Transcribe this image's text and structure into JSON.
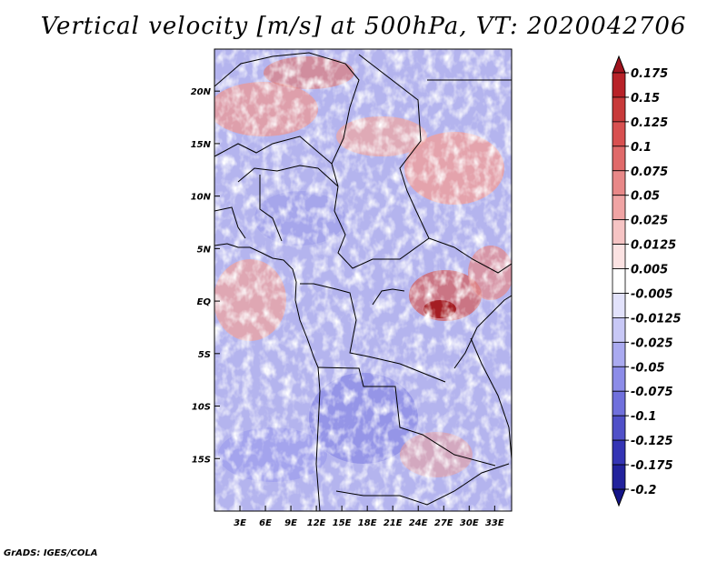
{
  "chart_data": {
    "type": "heatmap",
    "title": "Vertical velocity [m/s] at 500hPa, VT: 2020042706",
    "variable": "Vertical velocity",
    "units": "m/s",
    "level": "500hPa",
    "valid_time": "2020042706",
    "x_axis": {
      "ticks": [
        3,
        6,
        9,
        12,
        15,
        18,
        21,
        24,
        27,
        30,
        33
      ],
      "tick_labels": [
        "3E",
        "6E",
        "9E",
        "12E",
        "15E",
        "18E",
        "21E",
        "24E",
        "27E",
        "30E",
        "33E"
      ],
      "range": [
        0,
        35
      ]
    },
    "y_axis": {
      "ticks": [
        20,
        15,
        10,
        5,
        0,
        -5,
        -10,
        -15
      ],
      "tick_labels": [
        "20N",
        "15N",
        "10N",
        "5N",
        "EQ",
        "5S",
        "10S",
        "15S"
      ],
      "range": [
        -20,
        24
      ]
    },
    "colorbar": {
      "levels": [
        "0.175",
        "0.15",
        "0.125",
        "0.1",
        "0.075",
        "0.05",
        "0.025",
        "0.0125",
        "0.005",
        "-0.005",
        "-0.0125",
        "-0.025",
        "-0.05",
        "-0.075",
        "-0.1",
        "-0.125",
        "-0.175",
        "-0.2"
      ],
      "colors": [
        "#a0141e",
        "#b82228",
        "#c83a3a",
        "#d85050",
        "#e06a6a",
        "#e88888",
        "#f0a4a4",
        "#f6c4c4",
        "#fbe2e2",
        "#ffffff",
        "#e2e2fb",
        "#c8c8f6",
        "#aaaaf0",
        "#8c8ce8",
        "#7070dc",
        "#5050c8",
        "#3434b4",
        "#22229c",
        "#141488"
      ]
    }
  },
  "credit": "GrADS: IGES/COLA"
}
